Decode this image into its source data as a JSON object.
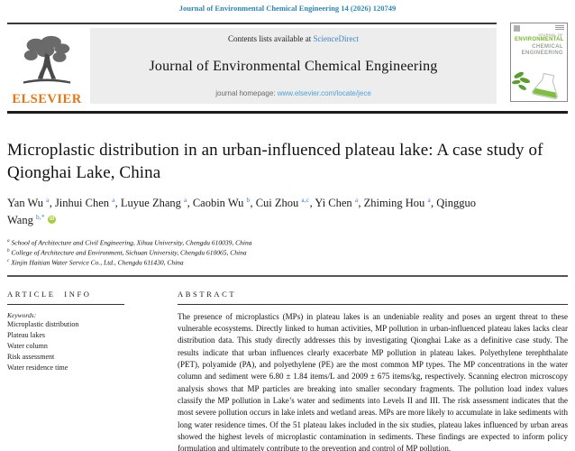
{
  "page": {
    "citation_line": "Journal of Environmental Chemical Engineering 14 (2026) 120749"
  },
  "header": {
    "contents_line_prefix": "Contents lists available at ",
    "sciencedirect_label": "ScienceDirect",
    "journal_title": "Journal of Environmental Chemical Engineering",
    "homepage_prefix": "journal homepage: ",
    "homepage_url": "www.elsevier.com/locate/jece",
    "elsevier_logo_text": "ELSEVIER",
    "cover": {
      "journal_of": "JOURNAL OF",
      "line1": "ENVIRONMENTAL",
      "line2": "CHEMICAL",
      "line3": "ENGINEERING"
    }
  },
  "article": {
    "title": "Microplastic distribution in an urban-influenced plateau lake: A case study of Qionghai Lake, China",
    "authors": [
      {
        "name": "Yan Wu",
        "sup": "a"
      },
      {
        "name": "Jinhui Chen",
        "sup": "a"
      },
      {
        "name": "Luyue Zhang",
        "sup": "a"
      },
      {
        "name": "Caobin Wu",
        "sup": "b"
      },
      {
        "name": "Cui Zhou",
        "sup": "a,c"
      },
      {
        "name": "Yi Chen",
        "sup": "a"
      },
      {
        "name": "Zhiming Hou",
        "sup": "a"
      },
      {
        "name": "Qingguo Wang",
        "sup": "b,*"
      }
    ],
    "orcid_label": "iD",
    "affiliations": [
      {
        "sup": "a",
        "text": "School of Architecture and Civil Engineering, Xihua University, Chengdu 610039, China"
      },
      {
        "sup": "b",
        "text": "College of Architecture and Environment, Sichuan University, Chengdu 610065, China"
      },
      {
        "sup": "c",
        "text": "Xinjin Haitian Water Service Co., Ltd., Chengdu 611430, China"
      }
    ]
  },
  "article_info": {
    "heading": "ARTICLE INFO",
    "keywords_label": "Keywords:",
    "keywords": [
      "Microplastic distribution",
      "Plateau lakes",
      "Water column",
      "Risk assessment",
      "Water residence time"
    ]
  },
  "abstract": {
    "heading": "ABSTRACT",
    "text": "The presence of microplastics (MPs) in plateau lakes is an undeniable reality and poses an urgent threat to these vulnerable ecosystems. Directly linked to human activities, MP pollution in urban-influenced plateau lakes lacks clear distribution data. This study directly addresses this by investigating Qionghai Lake as a definitive case study. The results indicate that urban influences clearly exacerbate MP pollution in plateau lakes. Polyethylene terephthalate (PET), polyamide (PA), and polyethylene (PE) are the most common MP types. The MP concentrations in the water column and sediment were 6.80 ± 1.84 items/L and 2009 ± 675 items/kg, respectively. Scanning electron microscopy analysis shows that MP particles are breaking into smaller secondary fragments. The pollution load index values classify the MP pollution in Lake’s water and sediments into Levels II and III. The risk assessment indicates that the most severe pollution occurs in lake inlets and wetland areas. MPs are more likely to accumulate in lake sediments with long water residence times. Of the 51 plateau lakes included in the six studies, plateau lakes influenced by urban areas showed the highest levels of microplastic contamination in sediments. These findings are expected to inform policy formulation and ultimately contribute to the prevention and control of MP pollution."
  },
  "colors": {
    "citation_teal": "#2e86b5",
    "link_blue": "#3b82c4",
    "homepage_blue": "#4da0d8",
    "elsevier_orange": "#e87511",
    "orcid_green": "#a6ce39",
    "cover_green": "#76b82a",
    "rule_dark": "#1c1c1c"
  }
}
